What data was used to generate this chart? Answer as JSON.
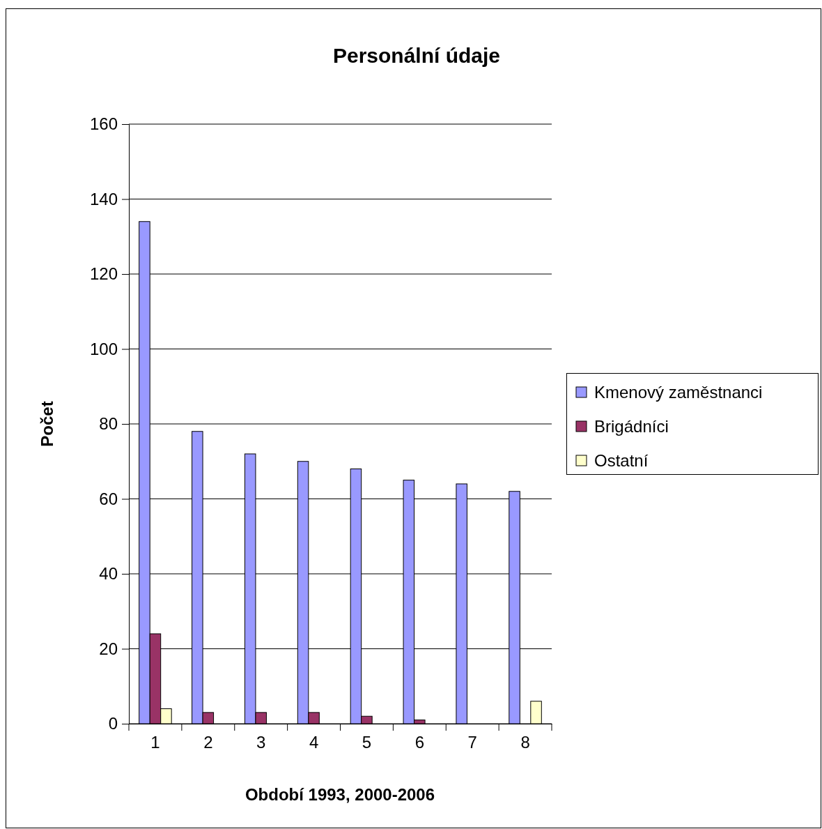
{
  "chart_data": {
    "type": "bar",
    "title": "Personální údaje",
    "xlabel": "Období 1993, 2000-2006",
    "ylabel": "Počet",
    "categories": [
      "1",
      "2",
      "3",
      "4",
      "5",
      "6",
      "7",
      "8"
    ],
    "series": [
      {
        "name": "Kmenový zaměstnanci",
        "color": "#9999ff",
        "values": [
          134,
          78,
          72,
          70,
          68,
          65,
          64,
          62
        ]
      },
      {
        "name": "Brigádníci",
        "color": "#993366",
        "values": [
          24,
          3,
          3,
          3,
          2,
          1,
          0,
          0
        ]
      },
      {
        "name": "Ostatní",
        "color": "#ffffcc",
        "values": [
          4,
          0,
          0,
          0,
          0,
          0,
          0,
          6
        ]
      }
    ],
    "ylim": [
      0,
      160
    ],
    "yticks": [
      0,
      20,
      40,
      60,
      80,
      100,
      120,
      140,
      160
    ],
    "grid": "y",
    "legend": "right"
  }
}
